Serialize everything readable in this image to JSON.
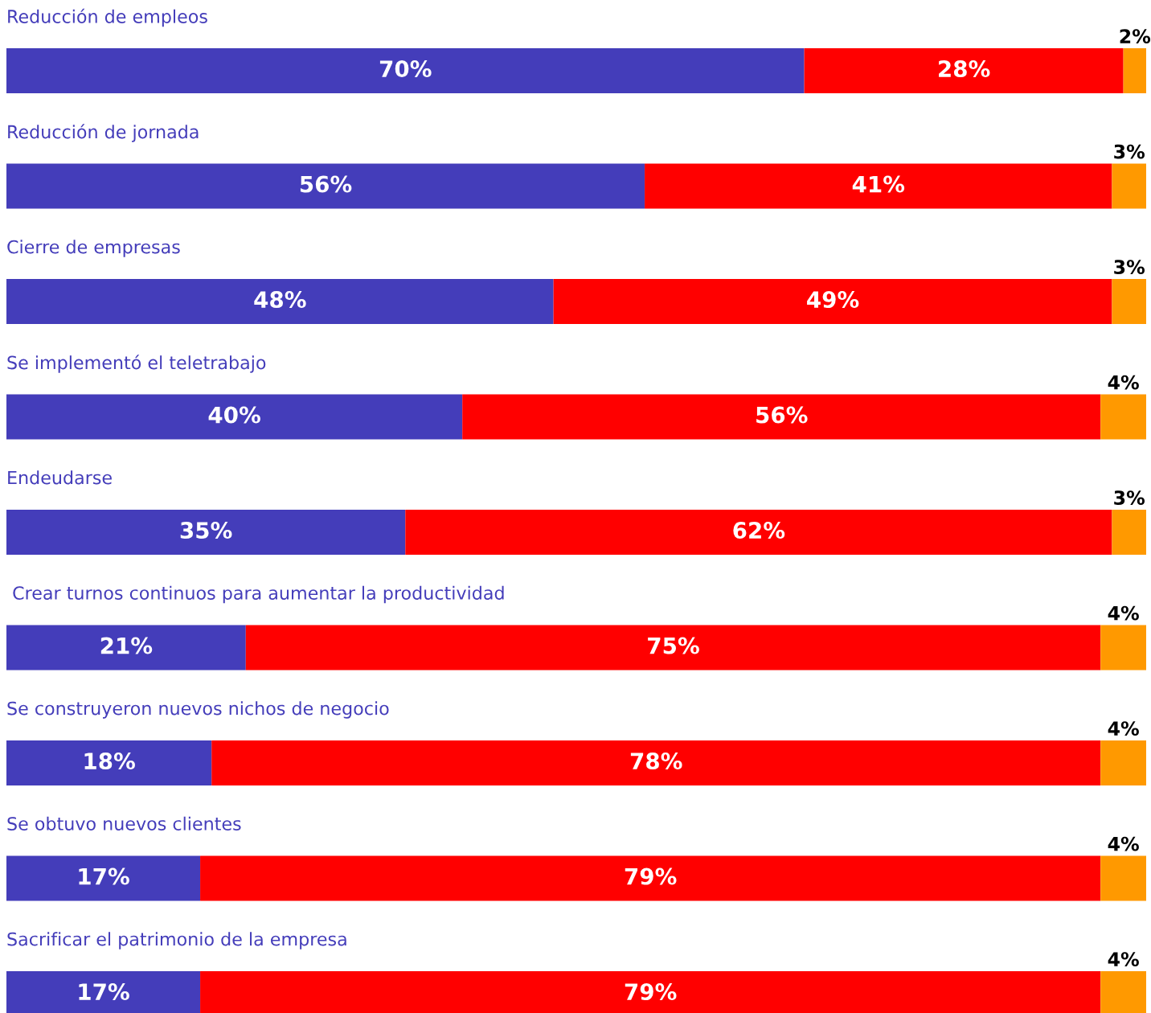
{
  "chart_data": {
    "type": "bar",
    "orientation": "horizontal",
    "stacked": true,
    "categories": [
      "Reducción de empleos",
      "Reducción de jornada",
      "Cierre de empresas",
      "Se implementó el teletrabajo",
      "Endeudarse",
      " Crear turnos continuos para aumentar la productividad",
      "Se construyeron nuevos nichos de negocio",
      "Se obtuvo nuevos clientes",
      "Sacrificar el patrimonio de la empresa"
    ],
    "xlim": [
      0,
      100
    ],
    "series": [
      {
        "color": "#443dba",
        "values": [
          70,
          56,
          48,
          40,
          35,
          21,
          18,
          17,
          17
        ],
        "value_labels": [
          "70%",
          "56%",
          "48%",
          "40%",
          "35%",
          "21%",
          "18%",
          "17%",
          "17%"
        ]
      },
      {
        "color": "#ff0000",
        "values": [
          28,
          41,
          49,
          56,
          62,
          75,
          78,
          79,
          79
        ],
        "value_labels": [
          "28%",
          "41%",
          "49%",
          "56%",
          "62%",
          "75%",
          "78%",
          "79%",
          "79%"
        ]
      },
      {
        "color": "#ff9900",
        "values": [
          2,
          3,
          3,
          4,
          3,
          4,
          4,
          4,
          4
        ],
        "value_labels": [
          "2%",
          "3%",
          "3%",
          "4%",
          "3%",
          "4%",
          "4%",
          "4%",
          "4%"
        ]
      }
    ]
  }
}
